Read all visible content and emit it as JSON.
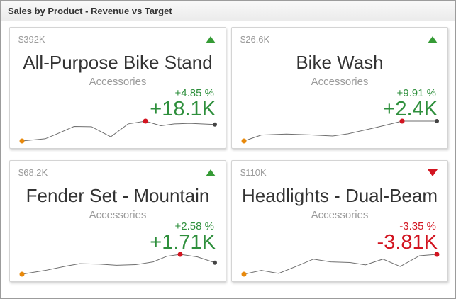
{
  "window": {
    "title": "Sales by Product - Revenue vs Target"
  },
  "colors": {
    "positive": "#359b35",
    "positive_text": "#2e8f3c",
    "negative": "#d21420",
    "spark_line": "#6e6e6e",
    "spark_start_dot": "#e8890b",
    "spark_max_dot": "#d21420",
    "spark_end_dot": "#444444",
    "muted_text": "#9a9a9a",
    "title_text": "#333333"
  },
  "chart_data": [
    {
      "type": "line",
      "card_title": "All-Purpose Bike Stand",
      "category": "Accessories",
      "revenue": "$392K",
      "percent_change": "+4.85 %",
      "delta": "+18.1K",
      "direction": "up",
      "legend": false,
      "axes": false,
      "points": [
        [
          0,
          1.0
        ],
        [
          0.12,
          0.89
        ],
        [
          0.18,
          0.65
        ],
        [
          0.27,
          0.27
        ],
        [
          0.36,
          0.28
        ],
        [
          0.46,
          0.79
        ],
        [
          0.55,
          0.14
        ],
        [
          0.64,
          0.0
        ],
        [
          0.72,
          0.23
        ],
        [
          0.79,
          0.14
        ],
        [
          0.87,
          0.11
        ],
        [
          1,
          0.17
        ]
      ],
      "markers": {
        "start": 0,
        "max": 7,
        "end": 11
      }
    },
    {
      "type": "line",
      "card_title": "Bike Wash",
      "category": "Accessories",
      "revenue": "$26.6K",
      "percent_change": "+9.91 %",
      "delta": "+2.4K",
      "direction": "up",
      "legend": false,
      "axes": false,
      "points": [
        [
          0,
          1.0
        ],
        [
          0.09,
          0.7
        ],
        [
          0.22,
          0.65
        ],
        [
          0.34,
          0.69
        ],
        [
          0.46,
          0.75
        ],
        [
          0.54,
          0.64
        ],
        [
          0.68,
          0.33
        ],
        [
          0.82,
          0.0
        ],
        [
          1,
          0.0
        ]
      ],
      "markers": {
        "start": 0,
        "max": 7,
        "end": 8
      }
    },
    {
      "type": "line",
      "card_title": "Fender Set - Mountain",
      "category": "Accessories",
      "revenue": "$68.2K",
      "percent_change": "+2.58 %",
      "delta": "+1.71K",
      "direction": "up",
      "legend": false,
      "axes": false,
      "points": [
        [
          0,
          1.0
        ],
        [
          0.12,
          0.81
        ],
        [
          0.23,
          0.59
        ],
        [
          0.3,
          0.47
        ],
        [
          0.4,
          0.49
        ],
        [
          0.49,
          0.55
        ],
        [
          0.59,
          0.52
        ],
        [
          0.68,
          0.38
        ],
        [
          0.75,
          0.1
        ],
        [
          0.82,
          0.0
        ],
        [
          0.91,
          0.13
        ],
        [
          1,
          0.42
        ]
      ],
      "markers": {
        "start": 0,
        "max": 9,
        "end": 11
      }
    },
    {
      "type": "line",
      "card_title": "Headlights - Dual-Beam",
      "category": "Accessories",
      "revenue": "$110K",
      "percent_change": "-3.35 %",
      "delta": "-3.81K",
      "direction": "down",
      "legend": false,
      "axes": false,
      "points": [
        [
          0,
          1.0
        ],
        [
          0.09,
          0.81
        ],
        [
          0.18,
          0.96
        ],
        [
          0.28,
          0.57
        ],
        [
          0.36,
          0.24
        ],
        [
          0.45,
          0.38
        ],
        [
          0.55,
          0.41
        ],
        [
          0.63,
          0.53
        ],
        [
          0.72,
          0.24
        ],
        [
          0.81,
          0.61
        ],
        [
          0.91,
          0.07
        ],
        [
          1,
          0.0
        ]
      ],
      "markers": {
        "start": 0,
        "max": 11,
        "end": 11
      }
    }
  ]
}
